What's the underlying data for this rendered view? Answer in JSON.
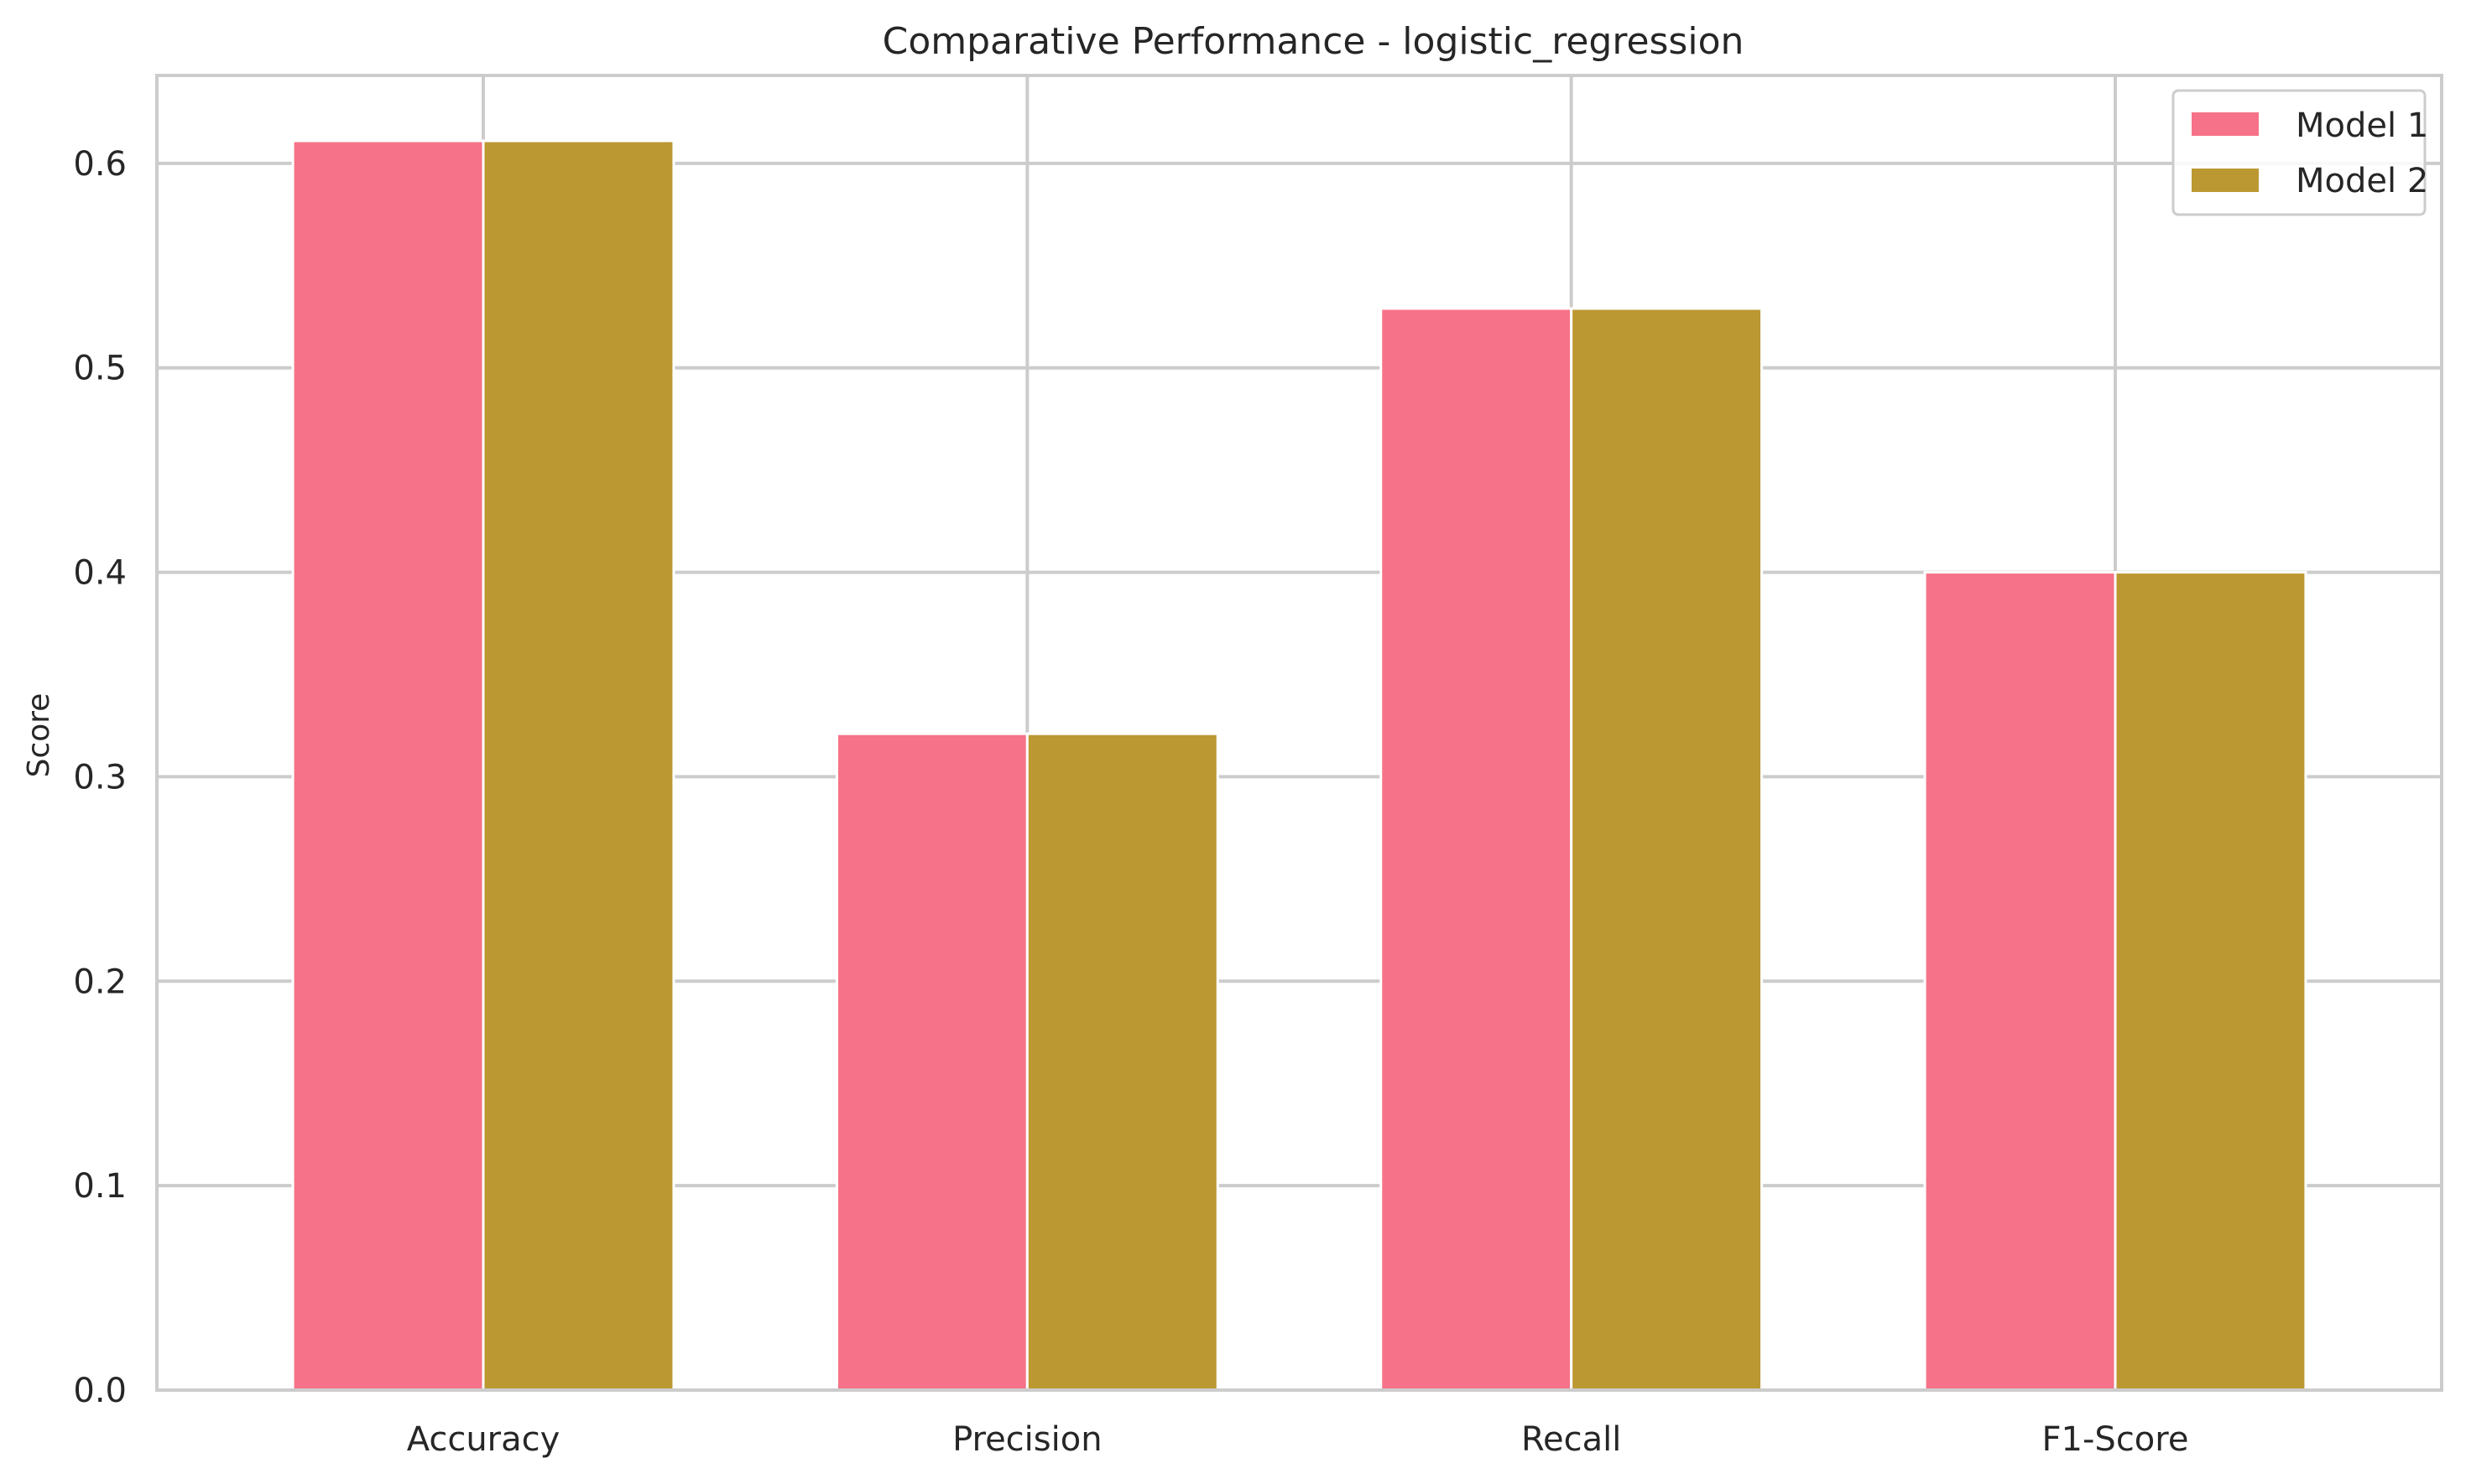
{
  "chart_data": {
    "type": "bar",
    "title": "Comparative Performance - logistic_regression",
    "xlabel": "",
    "ylabel": "Score",
    "categories": [
      "Accuracy",
      "Precision",
      "Recall",
      "F1-Score"
    ],
    "series": [
      {
        "name": "Model 1",
        "values": [
          0.611,
          0.321,
          0.529,
          0.4
        ],
        "color": "#f67288"
      },
      {
        "name": "Model 2",
        "values": [
          0.611,
          0.321,
          0.529,
          0.4
        ],
        "color": "#bb9832"
      }
    ],
    "ylim": [
      0,
      0.643
    ],
    "yticks": [
      "0.0",
      "0.1",
      "0.2",
      "0.3",
      "0.4",
      "0.5",
      "0.6"
    ],
    "grid": true,
    "legend_position": "top-right"
  }
}
